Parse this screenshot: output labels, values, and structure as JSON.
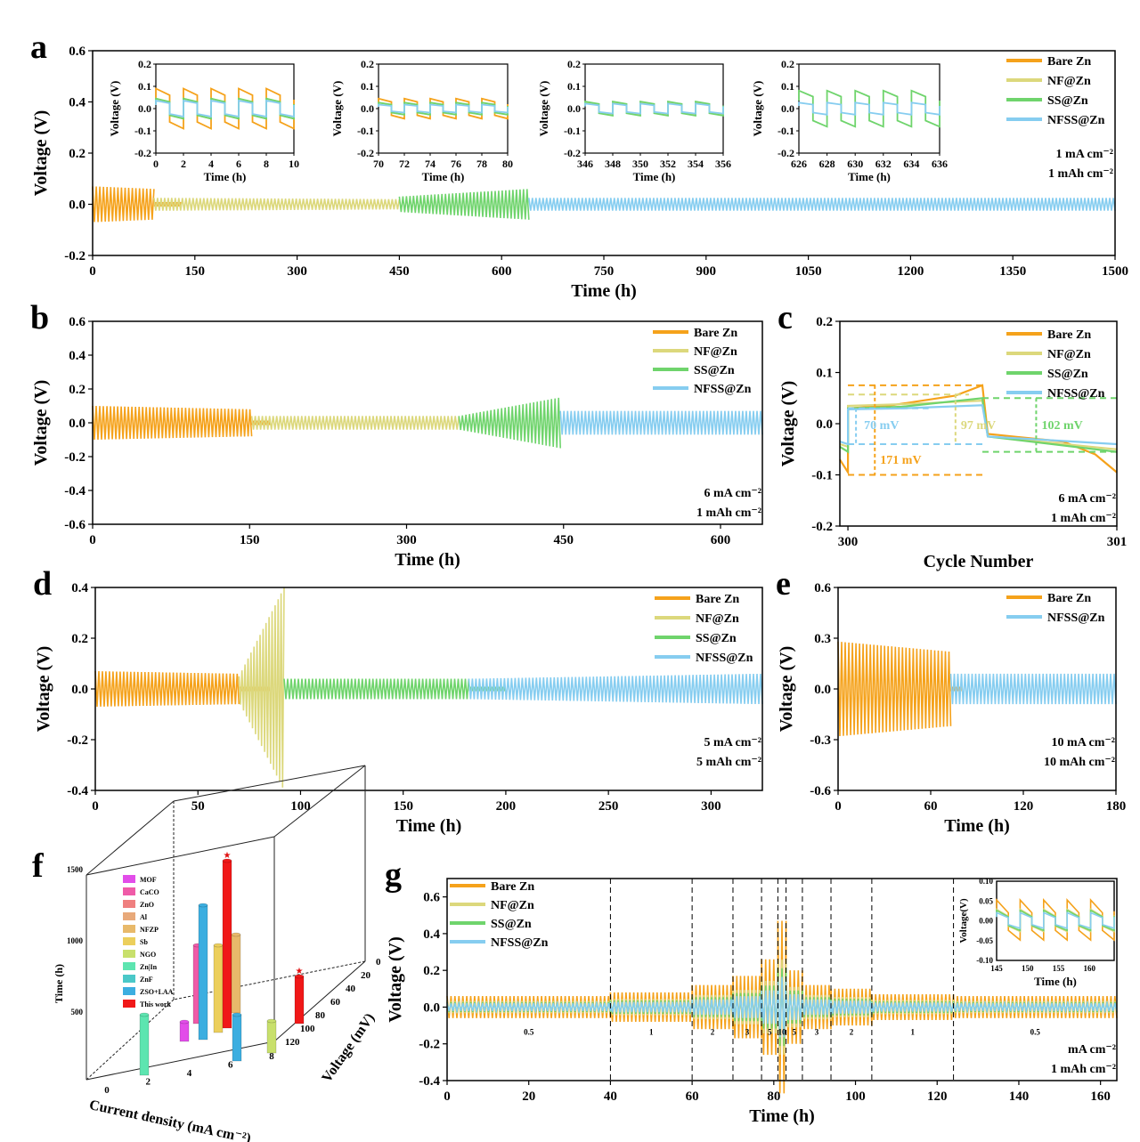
{
  "colors": {
    "bare_zn": "#f5a21b",
    "nf_zn": "#dcd87c",
    "ss_zn": "#6fd46c",
    "nfss_zn": "#86cdf0",
    "ref_mof": "#e24de9",
    "ref_caco": "#ef5ba8",
    "ref_zno": "#ef7f7f",
    "ref_al": "#e8a97a",
    "ref_nfzp": "#e8b96a",
    "ref_sb": "#eccf5c",
    "ref_ngo": "#c8e06c",
    "ref_znin": "#5de5b0",
    "ref_znf": "#4ac8c8",
    "ref_zso": "#3caee0",
    "ref_this": "#f01818"
  },
  "legend": [
    "Bare Zn",
    "NF@Zn",
    "SS@Zn",
    "NFSS@Zn"
  ],
  "chart_data": [
    {
      "id": "a",
      "type": "line",
      "panel_label": "a",
      "xlabel": "Time (h)",
      "ylabel": "Voltage (V)",
      "xlim": [
        0,
        1500
      ],
      "ylim": [
        -0.2,
        0.6
      ],
      "xticks": [
        "0",
        "150",
        "300",
        "450",
        "600",
        "750",
        "900",
        "1050",
        "1200",
        "1350",
        "1500"
      ],
      "yticks": [
        "-0.2",
        "0.0",
        "0.2",
        "0.4",
        "0.6"
      ],
      "conditions": [
        "1 mA cm⁻²",
        "1 mAh cm⁻²"
      ],
      "series": [
        {
          "name": "Bare Zn",
          "end": 90,
          "amp_start": 0.07,
          "amp_end": 0.06,
          "short_to": 130
        },
        {
          "name": "NF@Zn",
          "end": 450,
          "amp_start": 0.025,
          "amp_end": 0.02
        },
        {
          "name": "SS@Zn",
          "end": 640,
          "amp_start": 0.03,
          "amp_end": 0.06
        },
        {
          "name": "NFSS@Zn",
          "end": 1500,
          "amp_start": 0.025,
          "amp_end": 0.025
        }
      ],
      "insets": [
        {
          "xlim": [
            0,
            10
          ],
          "xticks": [
            "0",
            "2",
            "4",
            "6",
            "8",
            "10"
          ],
          "ylim": [
            -0.2,
            0.2
          ],
          "yticks": [
            "-0.2",
            "-0.1",
            "0.0",
            "0.1",
            "0.2"
          ],
          "xlabel": "Time (h)",
          "ylabel": "Voltage (V)"
        },
        {
          "xlim": [
            70,
            80
          ],
          "xticks": [
            "70",
            "72",
            "74",
            "76",
            "78",
            "80"
          ],
          "ylim": [
            -0.2,
            0.2
          ],
          "yticks": [
            "-0.2",
            "-0.1",
            "0.0",
            "0.1",
            "0.2"
          ],
          "xlabel": "Time (h)",
          "ylabel": "Voltage (V)"
        },
        {
          "xlim": [
            346,
            356
          ],
          "xticks": [
            "346",
            "348",
            "350",
            "352",
            "354",
            "356"
          ],
          "ylim": [
            -0.2,
            0.2
          ],
          "yticks": [
            "-0.2",
            "-0.1",
            "0.0",
            "0.1",
            "0.2"
          ],
          "xlabel": "Time (h)",
          "ylabel": "Voltage (V)"
        },
        {
          "xlim": [
            626,
            636
          ],
          "xticks": [
            "626",
            "628",
            "630",
            "632",
            "634",
            "636"
          ],
          "ylim": [
            -0.2,
            0.2
          ],
          "yticks": [
            "-0.2",
            "-0.1",
            "0.0",
            "0.1",
            "0.2"
          ],
          "xlabel": "Time (h)",
          "ylabel": "Voltage (V)"
        }
      ]
    },
    {
      "id": "b",
      "type": "line",
      "panel_label": "b",
      "xlabel": "Time (h)",
      "ylabel": "Voltage (V)",
      "xlim": [
        0,
        640
      ],
      "ylim": [
        -0.6,
        0.6
      ],
      "xticks": [
        "0",
        "150",
        "300",
        "450",
        "600"
      ],
      "yticks": [
        "-0.6",
        "-0.4",
        "-0.2",
        "0.0",
        "0.2",
        "0.4",
        "0.6"
      ],
      "conditions": [
        "6 mA cm⁻²",
        "1 mAh cm⁻²"
      ],
      "series": [
        {
          "name": "Bare Zn",
          "end": 152,
          "amp_start": 0.1,
          "amp_end": 0.08,
          "short_to": 170
        },
        {
          "name": "NF@Zn",
          "end": 350,
          "amp_start": 0.04,
          "amp_end": 0.04
        },
        {
          "name": "SS@Zn",
          "end": 447,
          "amp_start": 0.04,
          "amp_end": 0.15
        },
        {
          "name": "NFSS@Zn",
          "end": 640,
          "amp_start": 0.07,
          "amp_end": 0.07
        }
      ]
    },
    {
      "id": "c",
      "type": "line",
      "panel_label": "c",
      "xlabel": "Cycle Number",
      "ylabel": "Voltage (V)",
      "xlim": [
        299.97,
        301
      ],
      "ylim": [
        -0.2,
        0.2
      ],
      "xticks": [
        "300",
        "301"
      ],
      "yticks": [
        "-0.2",
        "-0.1",
        "0.0",
        "0.1",
        "0.2"
      ],
      "conditions": [
        "6 mA cm⁻²",
        "1 mAh cm⁻²"
      ],
      "annotations": [
        "70 mV",
        "97 mV",
        "102 mV",
        "171 mV"
      ],
      "series": [
        {
          "name": "Bare Zn",
          "points": [
            [
              299.97,
              -0.07
            ],
            [
              300.0,
              -0.095
            ],
            [
              300.0,
              0.03
            ],
            [
              300.15,
              0.035
            ],
            [
              300.4,
              0.055
            ],
            [
              300.5,
              0.075
            ],
            [
              300.52,
              -0.02
            ],
            [
              300.8,
              -0.035
            ],
            [
              300.92,
              -0.06
            ],
            [
              301,
              -0.095
            ]
          ]
        },
        {
          "name": "NF@Zn",
          "points": [
            [
              299.97,
              -0.04
            ],
            [
              300.0,
              -0.045
            ],
            [
              300.0,
              0.035
            ],
            [
              300.2,
              0.038
            ],
            [
              300.5,
              0.045
            ],
            [
              300.52,
              -0.025
            ],
            [
              301,
              -0.05
            ]
          ]
        },
        {
          "name": "SS@Zn",
          "points": [
            [
              299.97,
              -0.045
            ],
            [
              300.0,
              -0.055
            ],
            [
              300.0,
              0.03
            ],
            [
              300.2,
              0.033
            ],
            [
              300.5,
              0.05
            ],
            [
              300.52,
              -0.025
            ],
            [
              301,
              -0.055
            ]
          ]
        },
        {
          "name": "NFSS@Zn",
          "points": [
            [
              299.97,
              -0.035
            ],
            [
              300.0,
              -0.04
            ],
            [
              300.0,
              0.028
            ],
            [
              300.2,
              0.03
            ],
            [
              300.5,
              0.036
            ],
            [
              300.52,
              -0.025
            ],
            [
              301,
              -0.04
            ]
          ]
        }
      ]
    },
    {
      "id": "d",
      "type": "line",
      "panel_label": "d",
      "xlabel": "Time (h)",
      "ylabel": "Voltage (V)",
      "xlim": [
        0,
        325
      ],
      "ylim": [
        -0.4,
        0.4
      ],
      "xticks": [
        "0",
        "50",
        "100",
        "150",
        "200",
        "250",
        "300"
      ],
      "yticks": [
        "-0.4",
        "-0.2",
        "0.0",
        "0.2",
        "0.4"
      ],
      "conditions": [
        "5 mA cm⁻²",
        "5 mAh cm⁻²"
      ],
      "series": [
        {
          "name": "Bare Zn",
          "end": 70,
          "amp_start": 0.07,
          "amp_end": 0.06,
          "short_to": 85
        },
        {
          "name": "NF@Zn",
          "end": 92,
          "amp_start": 0.05,
          "amp_end": 0.4
        },
        {
          "name": "SS@Zn",
          "end": 182,
          "amp_start": 0.04,
          "amp_end": 0.04,
          "short_to": 200
        },
        {
          "name": "NFSS@Zn",
          "end": 325,
          "amp_start": 0.04,
          "amp_end": 0.06
        }
      ]
    },
    {
      "id": "e",
      "type": "line",
      "panel_label": "e",
      "xlabel": "Time (h)",
      "ylabel": "Voltage (V)",
      "xlim": [
        0,
        180
      ],
      "ylim": [
        -0.6,
        0.6
      ],
      "xticks": [
        "0",
        "60",
        "120",
        "180"
      ],
      "yticks": [
        "-0.6",
        "-0.3",
        "0.0",
        "0.3",
        "0.6"
      ],
      "conditions": [
        "10 mA cm⁻²",
        "10 mAh cm⁻²"
      ],
      "series": [
        {
          "name": "Bare Zn",
          "end": 73,
          "amp_start": 0.28,
          "amp_end": 0.22,
          "short_to": 80
        },
        {
          "name": "NFSS@Zn",
          "end": 180,
          "amp_start": 0.09,
          "amp_end": 0.09
        }
      ]
    },
    {
      "id": "f",
      "type": "bar3d",
      "panel_label": "f",
      "xlabel": "Current density (mA cm⁻²)",
      "ylabel": "Time (h)",
      "zlabel": "Voltage (mV)",
      "xticks": [
        "0",
        "2",
        "4",
        "6",
        "8"
      ],
      "yticks": [
        "500",
        "1000",
        "1500"
      ],
      "zticks": [
        "0",
        "20",
        "40",
        "60",
        "80",
        "100",
        "120"
      ],
      "legend": [
        "MOF",
        "CaCO",
        "ZnO",
        "Al",
        "NFZP",
        "Sb",
        "NGO",
        "Zn|In",
        "ZnF",
        "ZSO+LAA",
        "This work"
      ]
    },
    {
      "id": "g",
      "type": "line",
      "panel_label": "g",
      "xlabel": "Time (h)",
      "ylabel": "Voltage (V)",
      "xlim": [
        0,
        164
      ],
      "ylim": [
        -0.4,
        0.7
      ],
      "xticks": [
        "0",
        "20",
        "40",
        "60",
        "80",
        "100",
        "120",
        "140",
        "160"
      ],
      "yticks": [
        "-0.4",
        "-0.2",
        "0.0",
        "0.2",
        "0.4",
        "0.6"
      ],
      "conditions": [
        "mA cm⁻²",
        "1 mAh cm⁻²"
      ],
      "segments": [
        {
          "start": 0,
          "end": 40,
          "rate": "0.5",
          "amp": 0.06
        },
        {
          "start": 40,
          "end": 60,
          "rate": "1",
          "amp": 0.08
        },
        {
          "start": 60,
          "end": 70,
          "rate": "2",
          "amp": 0.12
        },
        {
          "start": 70,
          "end": 77,
          "rate": "3",
          "amp": 0.17
        },
        {
          "start": 77,
          "end": 81,
          "rate": "5",
          "amp": 0.26
        },
        {
          "start": 81,
          "end": 83,
          "rate": "10",
          "amp": 0.47
        },
        {
          "start": 83,
          "end": 87,
          "rate": "5",
          "amp": 0.2
        },
        {
          "start": 87,
          "end": 94,
          "rate": "3",
          "amp": 0.12
        },
        {
          "start": 94,
          "end": 104,
          "rate": "2",
          "amp": 0.1
        },
        {
          "start": 104,
          "end": 124,
          "rate": "1",
          "amp": 0.07
        },
        {
          "start": 124,
          "end": 164,
          "rate": "0.5",
          "amp": 0.06
        }
      ],
      "inset": {
        "xlim": [
          145,
          164
        ],
        "xticks": [
          "145",
          "150",
          "155",
          "160"
        ],
        "ylim": [
          -0.1,
          0.1
        ],
        "yticks": [
          "-0.10",
          "-0.05",
          "0.00",
          "0.05",
          "0.10"
        ],
        "xlabel": "Time (h)",
        "ylabel": "Voltage(V)"
      }
    }
  ]
}
